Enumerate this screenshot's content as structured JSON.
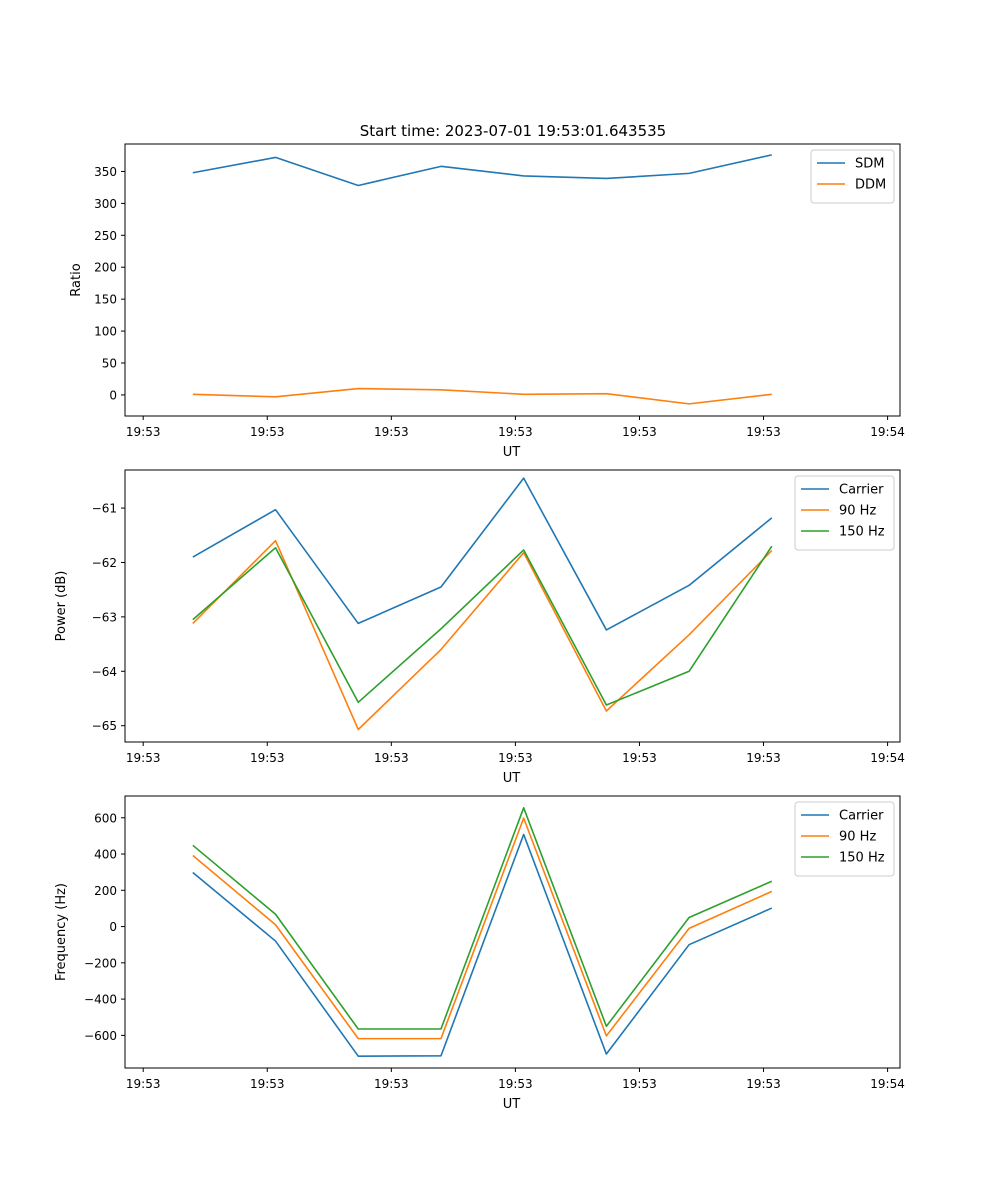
{
  "title": "Start time: 2023-07-01 19:53:01.643535",
  "colors": {
    "blue": "#1f77b4",
    "orange": "#ff7f0e",
    "green": "#2ca02c"
  },
  "chart_data": [
    {
      "type": "line",
      "title": "Start time: 2023-07-01 19:53:01.643535",
      "xlabel": "UT",
      "ylabel": "Ratio",
      "x": [
        1,
        2,
        3,
        4,
        5,
        6,
        7,
        8
      ],
      "xlim": [
        0.18,
        9.55
      ],
      "ylim": [
        -33,
        393
      ],
      "xticks": {
        "positions": [
          0.4,
          1.9,
          3.4,
          4.9,
          6.4,
          7.9,
          9.4
        ],
        "labels": [
          "19:53",
          "19:53",
          "19:53",
          "19:53",
          "19:53",
          "19:53",
          "19:54"
        ]
      },
      "yticks": [
        0,
        50,
        100,
        150,
        200,
        250,
        300,
        350
      ],
      "legend": "upper-right",
      "series": [
        {
          "name": "SDM",
          "color": "#1f77b4",
          "values": [
            348,
            372,
            328,
            358,
            343,
            339,
            347,
            376
          ]
        },
        {
          "name": "DDM",
          "color": "#ff7f0e",
          "values": [
            1,
            -3,
            10,
            8,
            1,
            2,
            -14,
            1
          ]
        }
      ]
    },
    {
      "type": "line",
      "xlabel": "UT",
      "ylabel": "Power (dB)",
      "x": [
        1,
        2,
        3,
        4,
        5,
        6,
        7,
        8
      ],
      "xlim": [
        0.18,
        9.55
      ],
      "ylim": [
        -65.3,
        -60.3
      ],
      "xticks": {
        "positions": [
          0.4,
          1.9,
          3.4,
          4.9,
          6.4,
          7.9,
          9.4
        ],
        "labels": [
          "19:53",
          "19:53",
          "19:53",
          "19:53",
          "19:53",
          "19:53",
          "19:54"
        ]
      },
      "yticks": [
        -65,
        -64,
        -63,
        -62,
        -61
      ],
      "legend": "upper-right",
      "series": [
        {
          "name": "Carrier",
          "color": "#1f77b4",
          "values": [
            -61.9,
            -61.03,
            -63.12,
            -62.45,
            -60.45,
            -63.24,
            -62.42,
            -61.18
          ]
        },
        {
          "name": "90 Hz",
          "color": "#ff7f0e",
          "values": [
            -63.12,
            -61.6,
            -65.07,
            -63.6,
            -61.82,
            -64.73,
            -63.33,
            -61.78
          ]
        },
        {
          "name": "150 Hz",
          "color": "#2ca02c",
          "values": [
            -63.05,
            -61.73,
            -64.57,
            -63.22,
            -61.77,
            -64.62,
            -64.0,
            -61.7
          ]
        }
      ]
    },
    {
      "type": "line",
      "xlabel": "UT",
      "ylabel": "Frequency (Hz)",
      "x": [
        1,
        2,
        3,
        4,
        5,
        6,
        7,
        8
      ],
      "xlim": [
        0.18,
        9.55
      ],
      "ylim": [
        -780,
        720
      ],
      "xticks": {
        "positions": [
          0.4,
          1.9,
          3.4,
          4.9,
          6.4,
          7.9,
          9.4
        ],
        "labels": [
          "19:53",
          "19:53",
          "19:53",
          "19:53",
          "19:53",
          "19:53",
          "19:54"
        ]
      },
      "yticks": [
        -600,
        -400,
        -200,
        0,
        200,
        400,
        600
      ],
      "legend": "upper-right",
      "series": [
        {
          "name": "Carrier",
          "color": "#1f77b4",
          "values": [
            298,
            -80,
            -715,
            -713,
            508,
            -703,
            -100,
            102
          ]
        },
        {
          "name": "90 Hz",
          "color": "#ff7f0e",
          "values": [
            392,
            10,
            -618,
            -618,
            598,
            -603,
            -10,
            194
          ]
        },
        {
          "name": "150 Hz",
          "color": "#2ca02c",
          "values": [
            448,
            68,
            -565,
            -565,
            655,
            -550,
            50,
            250
          ]
        }
      ]
    }
  ]
}
